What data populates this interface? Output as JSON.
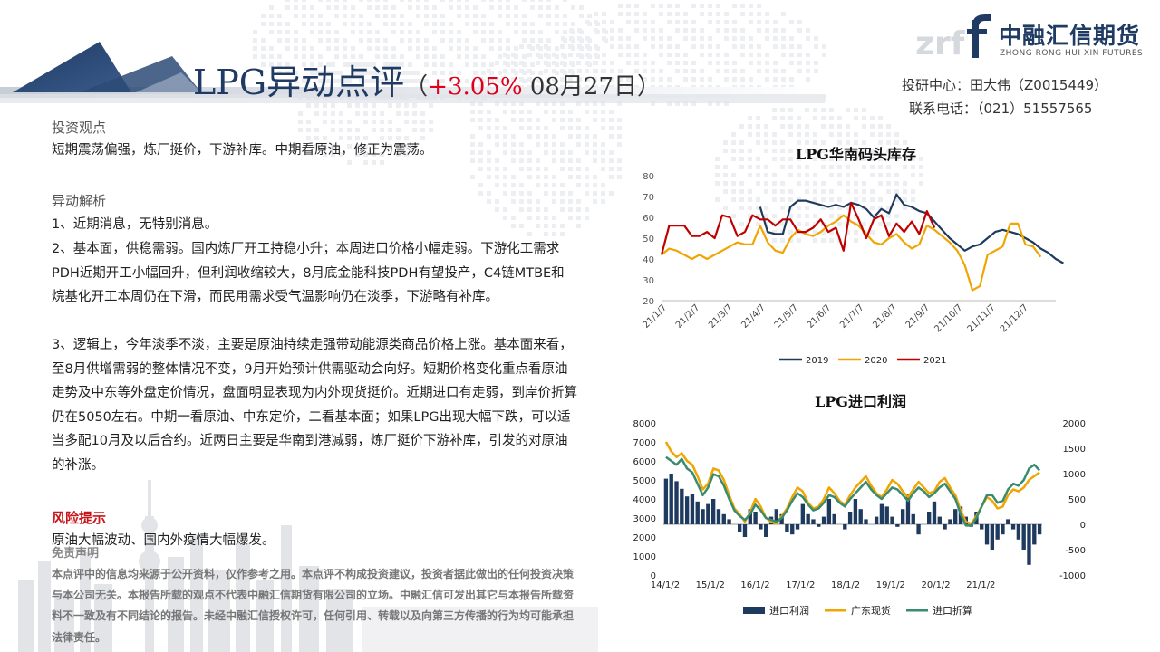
{
  "header": {
    "title_main": "LPG异动点评",
    "title_paren_open": "（",
    "title_change": "+3.05%",
    "title_date": " 08月27日",
    "title_paren_close": "）",
    "analyst_line": "投研中心：田大伟（Z0015449）",
    "phone_line": "联系电话：（021）51557565"
  },
  "logo": {
    "name_cn": "中融汇信期货",
    "name_en": "ZHONG RONG HUI XIN FUTURES",
    "mark_text": "f",
    "watermark": "zrf"
  },
  "sections": {
    "view_heading": "投资观点",
    "view_text": "短期震荡偏强，炼厂挺价，下游补库。中期看原油，修正为震荡。",
    "analysis_heading": "异动解析",
    "analysis_p1": "1、近期消息，无特别消息。",
    "analysis_p2": "2、基本面，供稳需弱。国内炼厂开工持稳小升；本周进口价格小幅走弱。下游化工需求PDH近期开工小幅回升，但利润收缩较大，8月底金能科技PDH有望投产，C4链MTBE和烷基化开工本周仍在下滑，而民用需求受气温影响仍在淡季，下游略有补库。",
    "analysis_p3": "3、逻辑上，今年淡季不淡，主要是原油持续走强带动能源类商品价格上涨。基本面来看，至8月供增需弱的整体情况不变，9月开始预计供需驱动会向好。短期价格变化重点看原油走势及中东等外盘定价情况，盘面明显表现为内外现货挺价。近期进口有走弱，到岸价折算仍在5050左右。中期一看原油、中东定价，二看基本面；如果LPG出现大幅下跌，可以适当多配10月及以后合约。近两日主要是华南到港减弱，炼厂挺价下游补库，引发的对原油的补涨。",
    "risk_heading": "风险提示",
    "risk_text": "原油大幅波动、国内外疫情大幅爆发。",
    "disclaimer_heading": "免责声明",
    "disclaimer_text": "本点评中的信息均来源于公开资料，仅作参考之用。本点评不构成投资建议，投资者据此做出的任何投资决策与本公司无关。本报告所载的观点不代表中融汇信期货有限公司的立场。中融汇信可发出其它与本报告所载资料不一致及有不同结论的报告。未经中融汇信授权许可，任何引用、转载以及向第三方传播的行为均可能承担法律责任。"
  },
  "chart_data": [
    {
      "type": "line",
      "title": "LPG华南码头库存",
      "ylim": [
        20,
        80
      ],
      "yticks": [
        20,
        30,
        40,
        50,
        60,
        70,
        80
      ],
      "x_ticks": [
        "21/1/7",
        "21/2/7",
        "21/3/7",
        "21/4/7",
        "21/5/7",
        "21/6/7",
        "21/7/7",
        "21/8/7",
        "21/9/7",
        "21/10/7",
        "21/11/7",
        "21/12/7"
      ],
      "x_range_weeks": [
        0,
        52
      ],
      "legend_position": "bottom",
      "series": [
        {
          "name": "2019",
          "color": "#1f3a5f",
          "start_week": 13,
          "values": [
            65,
            53,
            52,
            52,
            65,
            68,
            68,
            67,
            66,
            65,
            66,
            65,
            67,
            66,
            64,
            60,
            64,
            62,
            71,
            66,
            65,
            63,
            62,
            58,
            54,
            50,
            47,
            44,
            46,
            47,
            50,
            53,
            54,
            53,
            52,
            50,
            48,
            45,
            43,
            40,
            38
          ]
        },
        {
          "name": "2020",
          "color": "#f0a500",
          "start_week": 0,
          "values": [
            42,
            45,
            44,
            42,
            40,
            42,
            40,
            42,
            44,
            46,
            48,
            47,
            47,
            56,
            48,
            44,
            43,
            50,
            54,
            52,
            51,
            53,
            56,
            58,
            61,
            58,
            56,
            52,
            48,
            47,
            50,
            52,
            48,
            45,
            47,
            56,
            54,
            51,
            48,
            44,
            37,
            25,
            27,
            42,
            44,
            46,
            57,
            57,
            47,
            46,
            41
          ]
        },
        {
          "name": "2021",
          "color": "#c00000",
          "start_week": 0,
          "values": [
            42,
            56,
            56,
            56,
            51,
            51,
            53,
            50,
            61,
            60,
            51,
            53,
            61,
            59,
            59,
            56,
            59,
            59,
            53,
            53,
            55,
            59,
            53,
            55,
            44,
            67,
            59,
            50,
            59,
            61,
            51,
            57,
            53,
            58,
            52,
            63,
            55
          ]
        }
      ]
    },
    {
      "type": "bar+line",
      "title": "LPG进口利润",
      "x_ticks": [
        "14/1/2",
        "15/1/2",
        "16/1/2",
        "17/1/2",
        "18/1/2",
        "19/1/2",
        "20/1/2",
        "21/1/2"
      ],
      "left_ylim": [
        0,
        8000
      ],
      "left_yticks": [
        0,
        1000,
        2000,
        3000,
        4000,
        5000,
        6000,
        7000,
        8000
      ],
      "right_ylim": [
        -1000,
        2000
      ],
      "right_yticks": [
        -1000,
        -500,
        0,
        500,
        1000,
        1500,
        2000
      ],
      "legend_position": "bottom",
      "series": [
        {
          "name": "进口利润",
          "type": "bar",
          "axis": "right",
          "color": "#1f3a5f",
          "values": [
            900,
            1000,
            850,
            700,
            550,
            600,
            450,
            300,
            400,
            500,
            300,
            200,
            100,
            0,
            -150,
            -250,
            300,
            250,
            -100,
            -250,
            150,
            300,
            200,
            -150,
            -200,
            -100,
            400,
            200,
            100,
            -50,
            150,
            500,
            200,
            0,
            -100,
            250,
            500,
            300,
            100,
            0,
            150,
            400,
            350,
            150,
            -50,
            300,
            600,
            200,
            -200,
            0,
            250,
            450,
            150,
            -100,
            100,
            300,
            350,
            150,
            -50,
            250,
            -100,
            -400,
            -500,
            -300,
            -200,
            100,
            -100,
            -300,
            -500,
            -800,
            -400,
            -200
          ]
        },
        {
          "name": "广东现货",
          "type": "line",
          "axis": "left",
          "color": "#f0a500",
          "values": [
            7000,
            6500,
            6200,
            6400,
            6000,
            5800,
            5200,
            4500,
            4800,
            5600,
            5500,
            5000,
            4200,
            3500,
            3200,
            2800,
            3300,
            4000,
            3600,
            3000,
            2800,
            2700,
            3100,
            3500,
            4100,
            4600,
            4400,
            3800,
            3500,
            3600,
            4000,
            4600,
            4300,
            3900,
            3700,
            4200,
            4600,
            4900,
            5200,
            4700,
            4300,
            4100,
            4500,
            5000,
            4800,
            4400,
            4100,
            4500,
            4900,
            4600,
            4300,
            4400,
            4900,
            5100,
            4600,
            4200,
            3400,
            2800,
            2700,
            3100,
            3600,
            4100,
            3900,
            3500,
            3600,
            4200,
            4500,
            4400,
            4600,
            5000,
            5200,
            5400
          ]
        },
        {
          "name": "进口折算",
          "type": "line",
          "axis": "left",
          "color": "#3a8c6e",
          "values": [
            6200,
            6000,
            5800,
            6100,
            5600,
            5400,
            4800,
            4200,
            4600,
            5300,
            5200,
            4700,
            4000,
            3400,
            3100,
            2900,
            3200,
            3700,
            3400,
            3000,
            2900,
            2800,
            3000,
            3400,
            3900,
            4300,
            4100,
            3700,
            3400,
            3500,
            3800,
            4200,
            4100,
            3800,
            3600,
            4000,
            4300,
            4600,
            4900,
            4500,
            4200,
            4000,
            4300,
            4600,
            4500,
            4200,
            3900,
            4300,
            4600,
            4400,
            4100,
            4300,
            4600,
            4800,
            4400,
            4000,
            3200,
            2600,
            2600,
            3000,
            3600,
            4200,
            4200,
            3800,
            3900,
            4500,
            4800,
            4700,
            5000,
            5600,
            5800,
            5500
          ]
        }
      ]
    }
  ]
}
